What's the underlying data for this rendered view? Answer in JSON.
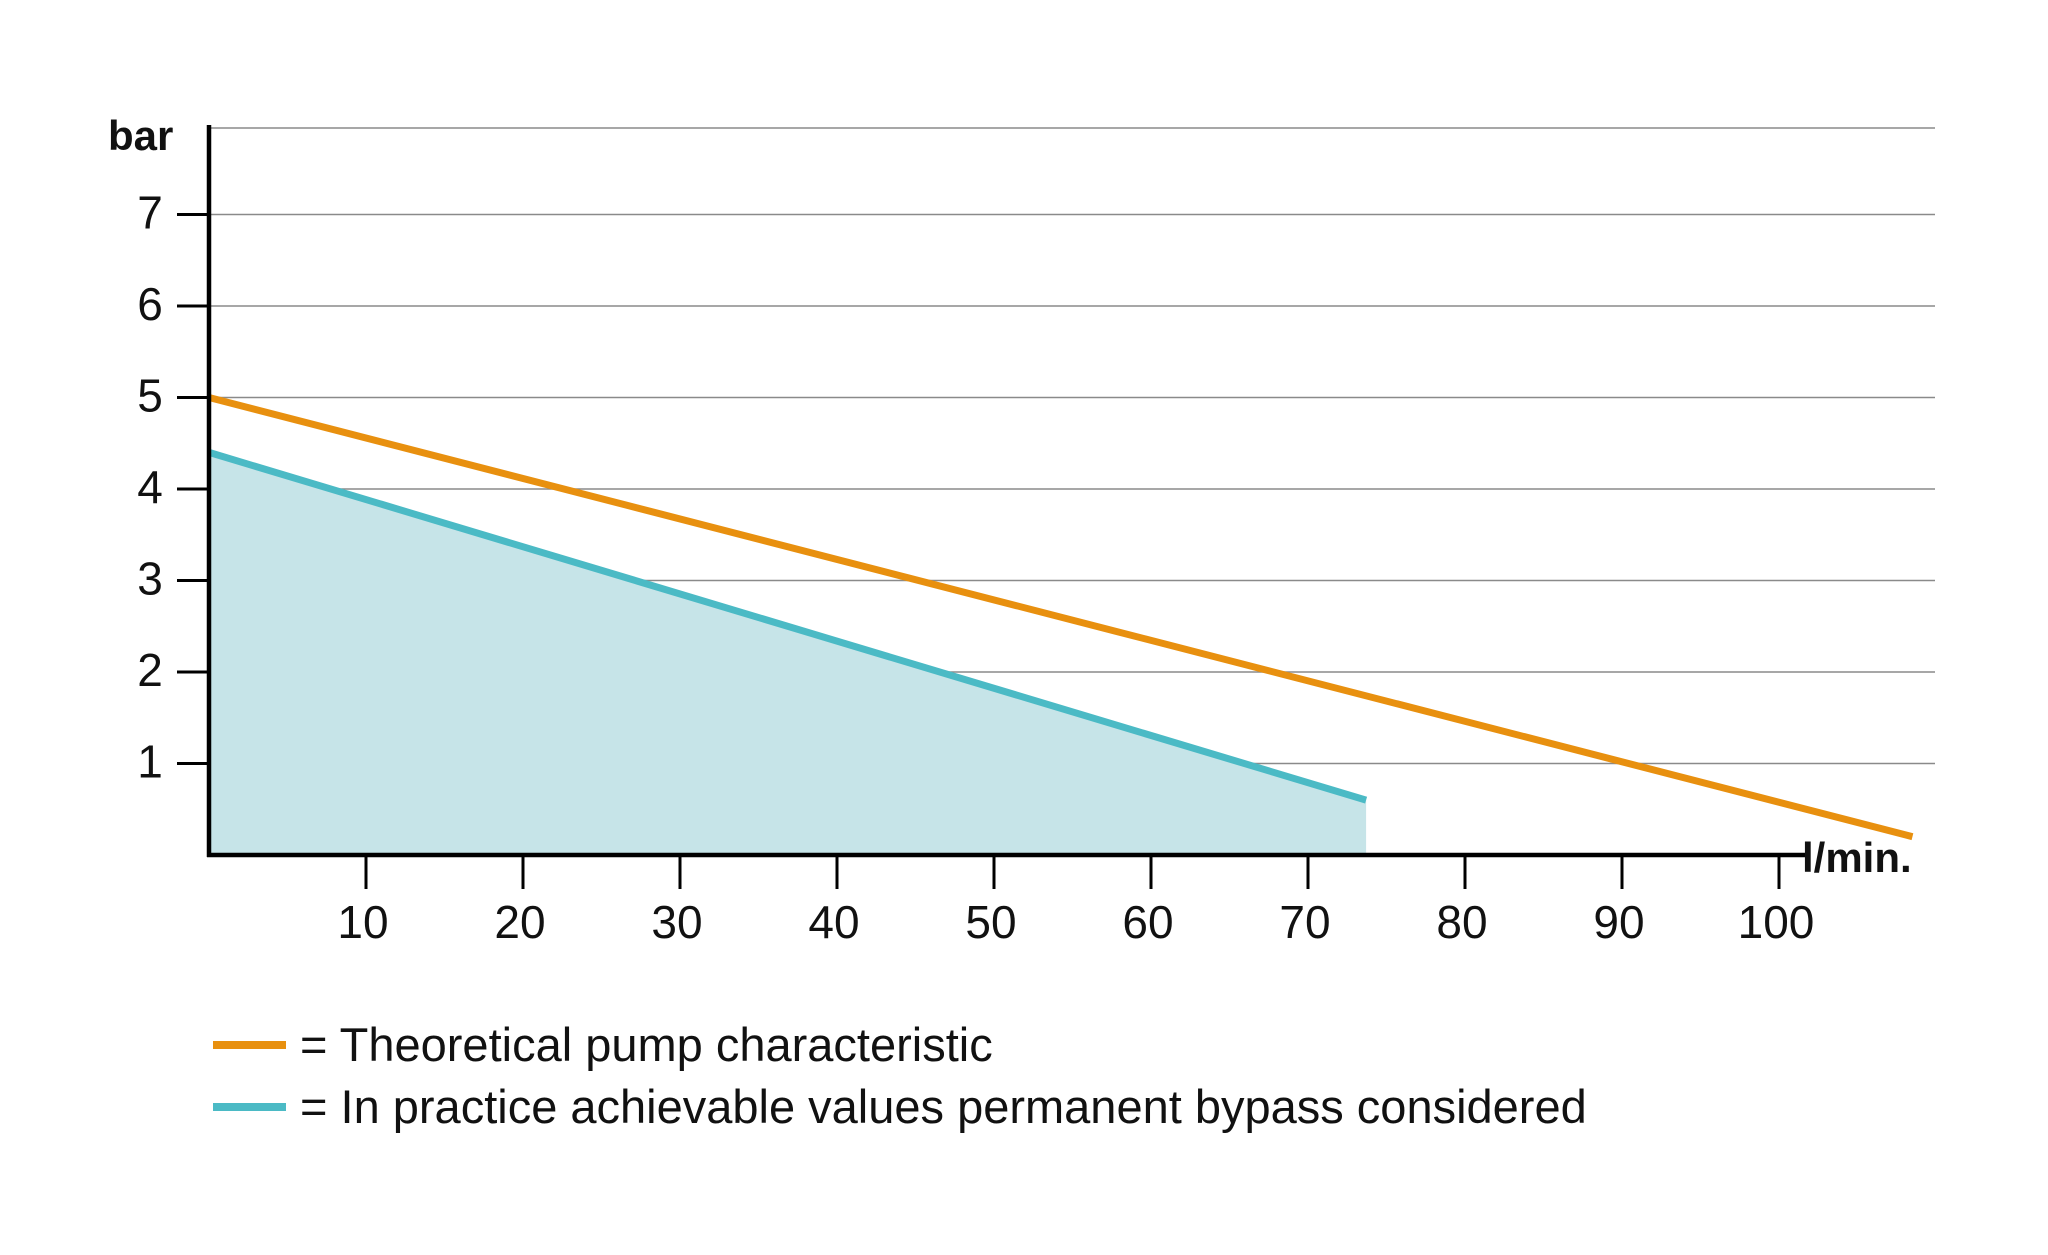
{
  "chart_data": {
    "type": "line",
    "xlabel": "l/min.",
    "ylabel": "bar",
    "xlim": [
      0,
      109
    ],
    "ylim": [
      0,
      8
    ],
    "x_ticks": [
      10,
      20,
      30,
      40,
      50,
      60,
      70,
      80,
      90,
      100
    ],
    "y_ticks": [
      1,
      2,
      3,
      4,
      5,
      6,
      7
    ],
    "grid": true,
    "legend_position": "bottom",
    "series": [
      {
        "name": "= Theoretical pump characteristic",
        "color": "#E8900F",
        "fill": false,
        "x": [
          0,
          108.5
        ],
        "y": [
          5.0,
          0.2
        ]
      },
      {
        "name": "= In practice achievable values permanent bypass considered",
        "color": "#4BBAC5",
        "fill": true,
        "fill_color": "#C6E4E8",
        "x": [
          0,
          73.7
        ],
        "y": [
          4.4,
          0.6
        ]
      }
    ]
  }
}
